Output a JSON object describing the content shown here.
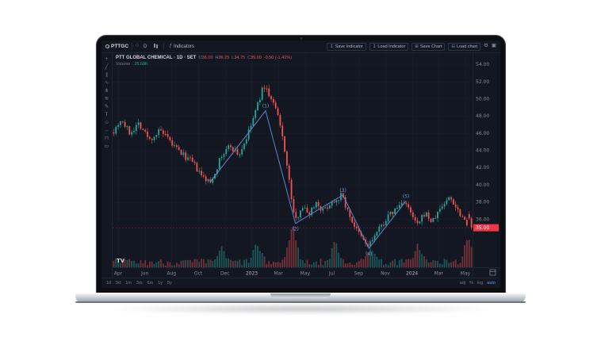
{
  "topbar": {
    "brand": "PTTGC",
    "interval": "D",
    "indicators_label": "Indicators",
    "right_buttons": [
      {
        "label": "Save Indicator",
        "icon": "save-indicator-icon"
      },
      {
        "label": "Load Indicator",
        "icon": "load-indicator-icon"
      },
      {
        "label": "Save Chart",
        "icon": "save-chart-icon"
      },
      {
        "label": "Load chart",
        "icon": "load-chart-icon"
      }
    ],
    "icon_buttons": [
      {
        "icon": "settings-icon"
      },
      {
        "icon": "screenshot-icon"
      }
    ]
  },
  "legend": {
    "title": "PTT GLOBAL CHEMICAL · 1D · SET",
    "ohlc": [
      {
        "k": "O",
        "v": "36.00"
      },
      {
        "k": "H",
        "v": "36.25"
      },
      {
        "k": "L",
        "v": "34.75"
      },
      {
        "k": "C",
        "v": "35.00"
      }
    ],
    "change": "-0.50 (-1.41%)",
    "volume_label": "Volume",
    "volume_value": "25.68K"
  },
  "toolbar_tools": [
    "crosshair",
    "trend-line",
    "channel",
    "elliott-wave",
    "pitchfork",
    "fibonacci",
    "brush",
    "text",
    "emoji",
    "ruler",
    "magnet",
    "trash"
  ],
  "bottombar": {
    "ranges": [
      "1d",
      "5d",
      "1m",
      "3m",
      "6m",
      "1y",
      "5y"
    ],
    "scale_options": [
      {
        "label": "adj",
        "active": false
      },
      {
        "label": "%",
        "active": false
      },
      {
        "label": "log",
        "active": false
      },
      {
        "label": "auto",
        "active": true
      }
    ]
  },
  "watermark": "TV",
  "chart_data": {
    "type": "candlestick",
    "symbol": "PTT GLOBAL CHEMICAL",
    "exchange": "SET",
    "interval": "1D",
    "x_ticks": [
      "Apr",
      "Jun",
      "Aug",
      "Oct",
      "Dec",
      "2023",
      "Mar",
      "May",
      "Jul",
      "Sep",
      "Nov",
      "2024",
      "Mar",
      "May"
    ],
    "y_ticks": [
      54,
      52,
      50,
      48,
      46,
      44,
      42,
      40,
      38,
      36
    ],
    "y_range": [
      30.4,
      55.3
    ],
    "last_price": "35.00",
    "candle_count": 160,
    "price_anchors": [
      [
        0.0,
        46.3
      ],
      [
        0.02,
        47.6
      ],
      [
        0.045,
        46.0
      ],
      [
        0.07,
        47.2
      ],
      [
        0.1,
        45.2
      ],
      [
        0.13,
        46.3
      ],
      [
        0.16,
        44.8
      ],
      [
        0.19,
        43.6
      ],
      [
        0.22,
        42.6
      ],
      [
        0.245,
        41.0
      ],
      [
        0.27,
        40.2
      ],
      [
        0.3,
        43.2
      ],
      [
        0.325,
        44.6
      ],
      [
        0.35,
        43.4
      ],
      [
        0.375,
        45.8
      ],
      [
        0.4,
        49.0
      ],
      [
        0.42,
        51.6
      ],
      [
        0.435,
        50.4
      ],
      [
        0.455,
        48.6
      ],
      [
        0.475,
        45.0
      ],
      [
        0.495,
        39.0
      ],
      [
        0.507,
        35.6
      ],
      [
        0.525,
        37.6
      ],
      [
        0.545,
        36.6
      ],
      [
        0.565,
        38.0
      ],
      [
        0.585,
        37.0
      ],
      [
        0.61,
        38.0
      ],
      [
        0.638,
        38.8
      ],
      [
        0.655,
        36.8
      ],
      [
        0.68,
        34.6
      ],
      [
        0.71,
        32.8
      ],
      [
        0.735,
        34.4
      ],
      [
        0.765,
        36.2
      ],
      [
        0.79,
        37.2
      ],
      [
        0.812,
        38.2
      ],
      [
        0.83,
        36.6
      ],
      [
        0.85,
        35.2
      ],
      [
        0.87,
        36.8
      ],
      [
        0.89,
        35.6
      ],
      [
        0.915,
        37.4
      ],
      [
        0.94,
        38.6
      ],
      [
        0.96,
        37.2
      ],
      [
        0.98,
        36.0
      ],
      [
        1.0,
        35.0
      ]
    ],
    "volume_spikes": [
      [
        0.3,
        0.35
      ],
      [
        0.4,
        0.45
      ],
      [
        0.5,
        1.0
      ],
      [
        0.62,
        0.5
      ],
      [
        0.72,
        0.4
      ],
      [
        0.85,
        0.45
      ],
      [
        0.99,
        0.55
      ]
    ],
    "wave": {
      "points": [
        [
          0.271,
          40.3
        ],
        [
          0.425,
          48.6
        ],
        [
          0.508,
          35.5
        ],
        [
          0.64,
          38.8
        ],
        [
          0.712,
          32.6
        ],
        [
          0.815,
          38.1
        ]
      ],
      "labels": [
        "",
        "(1)",
        "(2)",
        "(3)",
        "(4)",
        "(5)"
      ],
      "label_pos": [
        "none",
        "above",
        "below",
        "above",
        "below",
        "above"
      ],
      "color": "#5b82c4",
      "label_color": "#6f9bd8"
    },
    "colors": {
      "up": "#26a69a",
      "down": "#ef5350",
      "grid": "#1b202c",
      "bg": "#131722",
      "axis_text": "#868b94",
      "year_text": "#b7bac3",
      "axis_line": "#1f2430",
      "tag_bg": "#f23645",
      "tag_text": "#ffffff"
    }
  }
}
